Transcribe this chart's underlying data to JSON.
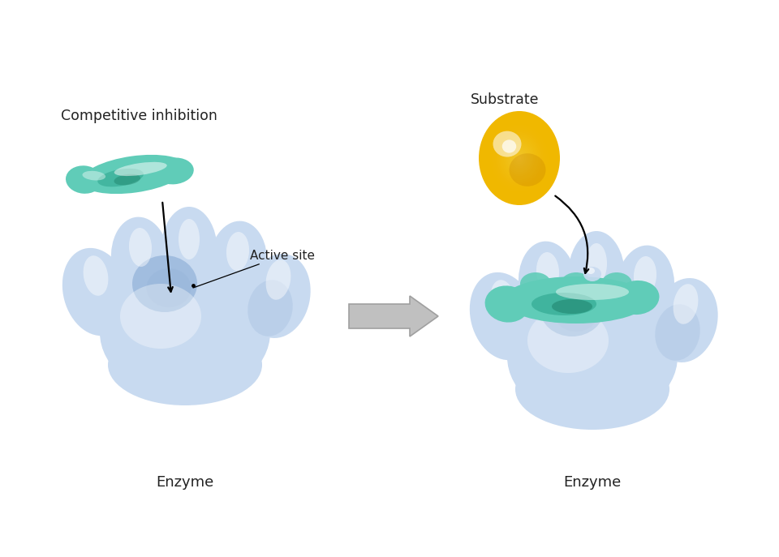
{
  "background_color": "#ffffff",
  "enzyme_light": "#c8daf0",
  "enzyme_mid": "#9bb8dc",
  "enzyme_dark": "#6090c0",
  "enzyme_white": "#e8f0f8",
  "inhibitor_light": "#60ccb8",
  "inhibitor_mid": "#30a890",
  "inhibitor_dark": "#187860",
  "inhibitor_vdark": "#0a5040",
  "substrate_light": "#ffe060",
  "substrate_mid": "#f0b800",
  "substrate_dark": "#c07800",
  "text_color": "#222222",
  "arrow_gray": "#c0c0c0",
  "arrow_gray_edge": "#a0a0a0",
  "label_competitive": "Competitive inhibition",
  "label_substrate": "Substrate",
  "label_active_site": "Active site",
  "label_enzyme": "Enzyme",
  "figsize": [
    9.6,
    6.87
  ],
  "dpi": 100
}
